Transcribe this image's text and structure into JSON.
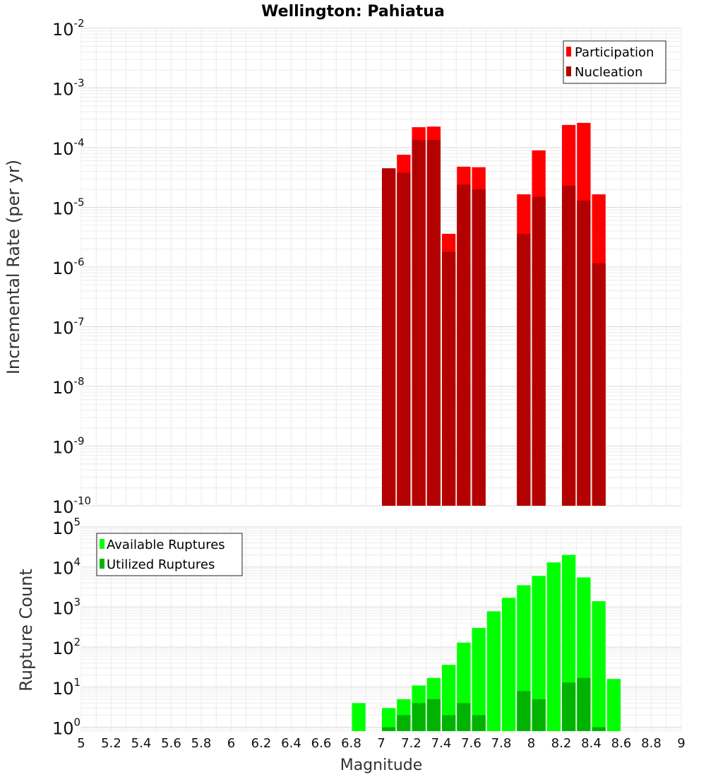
{
  "chart_data": [
    {
      "type": "bar",
      "title": "Wellington: Pahiatua",
      "ylabel": "Incremental Rate (per yr)",
      "xlabel": "",
      "yscale": "log",
      "ylim": [
        1e-10,
        0.01
      ],
      "xlim": [
        5,
        9
      ],
      "bin_width": 0.1,
      "legend_position": "top-right",
      "grid": true,
      "y_ticks": [
        {
          "base": "10",
          "exp": "-2",
          "value": 0.01
        },
        {
          "base": "10",
          "exp": "-3",
          "value": 0.001
        },
        {
          "base": "10",
          "exp": "-4",
          "value": 0.0001
        },
        {
          "base": "10",
          "exp": "-5",
          "value": 1e-05
        },
        {
          "base": "10",
          "exp": "-6",
          "value": 1e-06
        },
        {
          "base": "10",
          "exp": "-7",
          "value": 1e-07
        },
        {
          "base": "10",
          "exp": "-8",
          "value": 1e-08
        },
        {
          "base": "10",
          "exp": "-9",
          "value": 1e-09
        },
        {
          "base": "10",
          "exp": "-10",
          "value": 1e-10
        }
      ],
      "series": [
        {
          "name": "Participation",
          "color": "#ff0000",
          "points": [
            {
              "x": 7.05,
              "y": 4.5e-05
            },
            {
              "x": 7.15,
              "y": 7.6e-05
            },
            {
              "x": 7.25,
              "y": 0.00022
            },
            {
              "x": 7.35,
              "y": 0.000225
            },
            {
              "x": 7.45,
              "y": 3.6e-06
            },
            {
              "x": 7.55,
              "y": 4.8e-05
            },
            {
              "x": 7.65,
              "y": 4.7e-05
            },
            {
              "x": 7.95,
              "y": 1.65e-05
            },
            {
              "x": 8.05,
              "y": 9e-05
            },
            {
              "x": 8.25,
              "y": 0.00024
            },
            {
              "x": 8.35,
              "y": 0.00026
            },
            {
              "x": 8.45,
              "y": 1.65e-05
            }
          ]
        },
        {
          "name": "Nucleation",
          "color": "#b30000",
          "points": [
            {
              "x": 7.05,
              "y": 4.5e-05
            },
            {
              "x": 7.15,
              "y": 3.8e-05
            },
            {
              "x": 7.25,
              "y": 0.000135
            },
            {
              "x": 7.35,
              "y": 0.000135
            },
            {
              "x": 7.45,
              "y": 1.8e-06
            },
            {
              "x": 7.55,
              "y": 2.4e-05
            },
            {
              "x": 7.65,
              "y": 2e-05
            },
            {
              "x": 7.95,
              "y": 3.6e-06
            },
            {
              "x": 8.05,
              "y": 1.5e-05
            },
            {
              "x": 8.25,
              "y": 2.3e-05
            },
            {
              "x": 8.35,
              "y": 1.3e-05
            },
            {
              "x": 8.45,
              "y": 1.15e-06
            }
          ]
        }
      ]
    },
    {
      "type": "bar",
      "title": "",
      "ylabel": "Rupture Count",
      "xlabel": "Magnitude",
      "yscale": "log",
      "ylim": [
        0.8,
        100000.0
      ],
      "xlim": [
        5,
        9
      ],
      "bin_width": 0.1,
      "legend_position": "top-left",
      "grid": true,
      "y_ticks": [
        {
          "base": "10",
          "exp": "5",
          "value": 100000.0
        },
        {
          "base": "10",
          "exp": "4",
          "value": 10000.0
        },
        {
          "base": "10",
          "exp": "3",
          "value": 1000.0
        },
        {
          "base": "10",
          "exp": "2",
          "value": 100.0
        },
        {
          "base": "10",
          "exp": "1",
          "value": 10.0
        },
        {
          "base": "10",
          "exp": "0",
          "value": 1
        }
      ],
      "x_ticks": [
        "5",
        "5.2",
        "5.4",
        "5.6",
        "5.8",
        "6",
        "6.2",
        "6.4",
        "6.6",
        "6.8",
        "7",
        "7.2",
        "7.4",
        "7.6",
        "7.8",
        "8",
        "8.2",
        "8.4",
        "8.6",
        "8.8",
        "9"
      ],
      "series": [
        {
          "name": "Available Ruptures",
          "color": "#00ff00",
          "points": [
            {
              "x": 6.85,
              "y": 4
            },
            {
              "x": 7.05,
              "y": 3
            },
            {
              "x": 7.15,
              "y": 5
            },
            {
              "x": 7.25,
              "y": 11
            },
            {
              "x": 7.35,
              "y": 17
            },
            {
              "x": 7.45,
              "y": 36
            },
            {
              "x": 7.55,
              "y": 130
            },
            {
              "x": 7.65,
              "y": 300
            },
            {
              "x": 7.75,
              "y": 780
            },
            {
              "x": 7.85,
              "y": 1700
            },
            {
              "x": 7.95,
              "y": 3500
            },
            {
              "x": 8.05,
              "y": 6000
            },
            {
              "x": 8.15,
              "y": 13000
            },
            {
              "x": 8.25,
              "y": 20000
            },
            {
              "x": 8.35,
              "y": 5500
            },
            {
              "x": 8.45,
              "y": 1400
            },
            {
              "x": 8.55,
              "y": 16
            }
          ]
        },
        {
          "name": "Utilized Ruptures",
          "color": "#00b300",
          "points": [
            {
              "x": 7.05,
              "y": 1
            },
            {
              "x": 7.15,
              "y": 2
            },
            {
              "x": 7.25,
              "y": 4
            },
            {
              "x": 7.35,
              "y": 5
            },
            {
              "x": 7.45,
              "y": 2
            },
            {
              "x": 7.55,
              "y": 4
            },
            {
              "x": 7.65,
              "y": 2
            },
            {
              "x": 7.95,
              "y": 8
            },
            {
              "x": 8.05,
              "y": 5
            },
            {
              "x": 8.25,
              "y": 13
            },
            {
              "x": 8.35,
              "y": 17
            },
            {
              "x": 8.45,
              "y": 1
            }
          ]
        }
      ]
    }
  ]
}
